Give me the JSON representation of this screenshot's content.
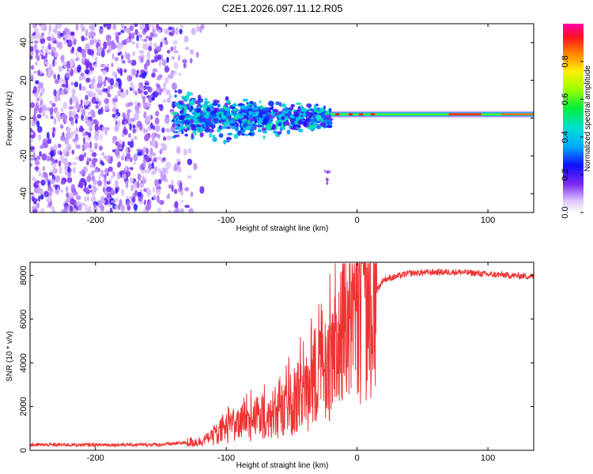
{
  "chart_data": [
    {
      "type": "heatmap",
      "title": "C2E1.2026.097.11.12.R05",
      "xlabel": "Height of straight line (km)",
      "ylabel": "Frequency (Hz)",
      "xlim": [
        -250,
        135
      ],
      "ylim": [
        -50,
        50
      ],
      "xticks": [
        "-200",
        "-100",
        "0",
        "100"
      ],
      "xtick_values": [
        -200,
        -100,
        0,
        100
      ],
      "yticks": [
        "40",
        "20",
        "0",
        "-20",
        "-40"
      ],
      "ytick_values": [
        40,
        20,
        0,
        -20,
        -40
      ],
      "colorbar": {
        "label": "Normalized spectral amplitude",
        "range": [
          0.0,
          1.0
        ],
        "ticks": [
          "0.0",
          "0.2",
          "0.4",
          "0.6",
          "0.8"
        ],
        "tick_values": [
          0.0,
          0.2,
          0.4,
          0.6,
          0.8
        ]
      },
      "regions": [
        {
          "name": "noise",
          "x_range": [
            -250,
            -140
          ],
          "freq_range": [
            -50,
            50
          ],
          "amplitude": 0.1
        },
        {
          "name": "emerging-signal",
          "x_range": [
            -140,
            -20
          ],
          "freq_center": 0,
          "freq_spread": 6,
          "amplitude": 0.3
        },
        {
          "name": "carrier",
          "x_range": [
            -20,
            135
          ],
          "freq_center": 2,
          "amplitude": 0.9
        }
      ]
    },
    {
      "type": "line",
      "xlabel": "Height of straight line (km)",
      "ylabel": "SNR (10 * v/v)",
      "xlim": [
        -250,
        135
      ],
      "ylim": [
        0,
        8600
      ],
      "xticks": [
        "-200",
        "-100",
        "0",
        "100"
      ],
      "xtick_values": [
        -200,
        -100,
        0,
        100
      ],
      "yticks": [
        "0",
        "2000",
        "4000",
        "6000",
        "8000"
      ],
      "ytick_values": [
        0,
        2000,
        4000,
        6000,
        8000
      ],
      "series": [
        {
          "name": "SNR",
          "color": "#ee3333",
          "x": [
            -250,
            -200,
            -150,
            -120,
            -100,
            -80,
            -60,
            -40,
            -30,
            -20,
            -10,
            0,
            10,
            20,
            40,
            60,
            80,
            100,
            135
          ],
          "y": [
            250,
            250,
            260,
            400,
            1000,
            1400,
            1700,
            2600,
            3200,
            4200,
            5200,
            6000,
            6800,
            7800,
            8100,
            8150,
            8150,
            8050,
            7950
          ]
        }
      ]
    }
  ]
}
